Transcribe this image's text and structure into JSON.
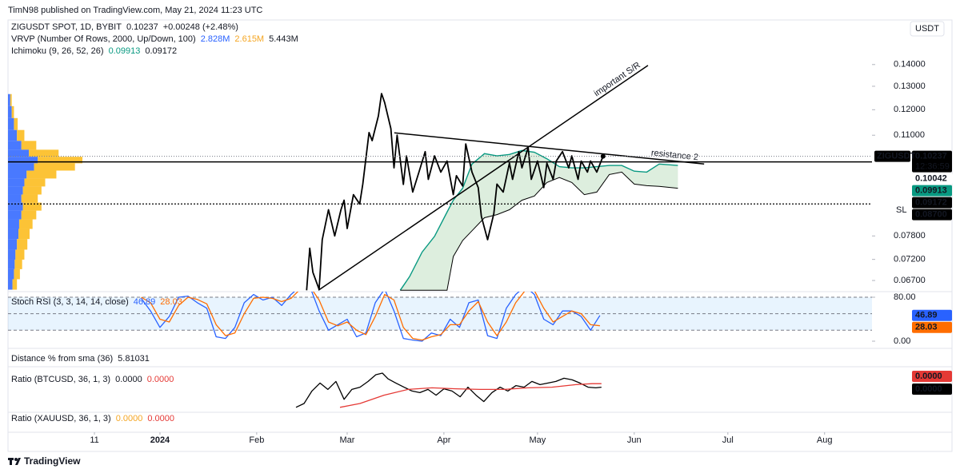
{
  "header": {
    "published": "TimN98 published on TradingView.com, May 21, 2024 11:23 UTC",
    "currency": "USDT"
  },
  "footer": {
    "brand": "TradingView"
  },
  "chart_data": [
    {
      "type": "line",
      "title": "ZIGUSDT SPOT, 1D, BYBIT",
      "change": "+0.00248 (+2.48%)",
      "log_scale": true,
      "xlim": [
        -48.7,
        228.2
      ],
      "xticks": [
        {
          "value": -21,
          "label": "11"
        },
        {
          "value": 0,
          "label": "2024"
        },
        {
          "value": 31,
          "label": "Feb"
        },
        {
          "value": 60,
          "label": "Mar"
        },
        {
          "value": 91,
          "label": "Apr"
        },
        {
          "value": 121,
          "label": "May"
        },
        {
          "value": 152,
          "label": "Jun"
        },
        {
          "value": 182,
          "label": "Jul"
        },
        {
          "value": 213,
          "label": "Aug"
        }
      ],
      "ylim": [
        0.0645,
        0.163
      ],
      "yticks": [
        {
          "value": 0.067,
          "label": "0.06700"
        },
        {
          "value": 0.072,
          "label": "0.07200"
        },
        {
          "value": 0.078,
          "label": "0.07800"
        },
        {
          "value": 0.11,
          "label": "0.11000"
        },
        {
          "value": 0.12,
          "label": "0.12000"
        },
        {
          "value": 0.13,
          "label": "0.13000"
        },
        {
          "value": 0.14,
          "label": "0.14000"
        }
      ],
      "x": [
        47,
        48,
        49,
        51,
        52,
        54,
        56,
        58,
        59,
        60,
        62,
        64,
        65,
        67,
        68,
        70,
        71,
        72,
        74,
        75,
        76,
        78,
        79,
        81,
        83,
        85,
        86,
        88,
        90,
        92,
        94,
        95,
        97,
        98,
        100,
        102,
        103,
        105,
        107,
        108,
        110,
        112,
        113,
        115,
        116,
        118,
        119,
        121,
        123,
        124,
        126,
        127,
        129,
        131,
        132,
        134,
        135,
        137,
        138,
        140,
        142
      ],
      "series": [
        {
          "name": "ZIGUSDT",
          "color": "#000000",
          "values": [
            0.0648,
            0.0748,
            0.0689,
            0.065,
            0.077,
            0.0853,
            0.078,
            0.0853,
            0.0881,
            0.08,
            0.0898,
            0.087,
            0.0931,
            0.111,
            0.108,
            0.1175,
            0.1268,
            0.123,
            0.1125,
            0.0984,
            0.11,
            0.093,
            0.1025,
            0.0906,
            0.097,
            0.104,
            0.0946,
            0.1025,
            0.097,
            0.1007,
            0.0898,
            0.0958,
            0.0925,
            0.1068,
            0.097,
            0.092,
            0.0834,
            0.077,
            0.0842,
            0.0931,
            0.0906,
            0.1,
            0.0946,
            0.104,
            0.0984,
            0.1055,
            0.0946,
            0.1007,
            0.092,
            0.1,
            0.0946,
            0.1007,
            0.104,
            0.0984,
            0.1025,
            0.0946,
            0.1007,
            0.097,
            0.1007,
            0.097,
            0.10237
          ]
        }
      ],
      "vrvp": {
        "name": "VRVP (Number Of Rows, 2000, Up/Down, 100)",
        "legend_values": [
          {
            "text": "2.828M",
            "color": "#2962ff"
          },
          {
            "text": "2.615M",
            "color": "#f5a623"
          },
          {
            "text": "5.443M",
            "color": "#131722"
          }
        ],
        "up_color": "#2962ff",
        "down_color": "#fbb813",
        "rows": [
          0.124,
          0.119,
          0.1143,
          0.1097,
          0.1061,
          0.1033,
          0.1011,
          0.0988,
          0.0962,
          0.0936,
          0.0911,
          0.0886,
          0.0862,
          0.0839,
          0.0812,
          0.0786,
          0.0758,
          0.0731,
          0.0708,
          0.0685,
          0.0661
        ],
        "up": [
          3,
          5,
          8,
          12,
          18,
          28,
          40,
          35,
          25,
          22,
          20,
          18,
          20,
          18,
          15,
          14,
          12,
          10,
          9,
          8,
          6
        ],
        "down": [
          2,
          3,
          5,
          10,
          20,
          40,
          60,
          55,
          40,
          28,
          25,
          22,
          25,
          20,
          18,
          15,
          14,
          12,
          10,
          8,
          6
        ]
      },
      "ichimoku": {
        "name": "Ichimoku (9, 26, 52, 26)",
        "cloud_color": "#43a047",
        "x": [
          77,
          80,
          84,
          88,
          92,
          94,
          97,
          100,
          104,
          108,
          112,
          116,
          120,
          124,
          128,
          132,
          136,
          140,
          144,
          148,
          152,
          156,
          160,
          166
        ],
        "span_a": {
          "color": "#089981",
          "values": [
            0.0648,
            0.0679,
            0.0738,
            0.0779,
            0.0846,
            0.0881,
            0.0918,
            0.0997,
            0.1033,
            0.1025,
            0.103,
            0.1044,
            0.1038,
            0.1015,
            0.0988,
            0.0984,
            0.0984,
            0.0988,
            0.0992,
            0.0992,
            0.0973,
            0.097,
            0.0997,
            0.0992
          ]
        },
        "span_b": {
          "color": "#000000",
          "values": [
            0.0648,
            0.0648,
            0.0648,
            0.0648,
            0.0648,
            0.0727,
            0.0768,
            0.0794,
            0.083,
            0.0839,
            0.0853,
            0.0881,
            0.0894,
            0.0936,
            0.0952,
            0.0936,
            0.0898,
            0.0906,
            0.0962,
            0.097,
            0.0931,
            0.0926,
            0.0924,
            0.0918
          ]
        }
      },
      "hlines": [
        {
          "value": 0.10042,
          "style": "solid"
        },
        {
          "value": 0.087,
          "style": "dotted",
          "label": "SL"
        }
      ],
      "drawings": [
        {
          "label": "important S/R",
          "x": [
            50.8,
            156.4
          ],
          "y": [
            0.0648,
            0.1396
          ]
        },
        {
          "label": "resistance 2",
          "x": [
            75.1,
            174.4
          ],
          "y": [
            0.1109,
            0.0997
          ]
        }
      ],
      "price_labels": [
        {
          "value": 0.10237,
          "label": "0.10237",
          "timer": "12:36:59",
          "color": "#000000",
          "text_color": "#ffffff"
        },
        {
          "value": 0.10042,
          "label": "0.10042",
          "color": "#ffffff",
          "text_color": "#000000"
        },
        {
          "value": 0.09913,
          "label": "0.09913",
          "color": "#089981",
          "text_color": "#ffffff"
        },
        {
          "value": 0.09172,
          "label": "0.09172",
          "color": "#000000",
          "text_color": "#ffffff"
        },
        {
          "value": 0.087,
          "label": "0.08700",
          "color": "#000000",
          "text_color": "#ffffff"
        }
      ]
    },
    {
      "type": "line",
      "title": "Stoch RSI (3, 3, 14, 14, close)",
      "ylim": [
        -11.6,
        90.2
      ],
      "yticks": [
        {
          "value": 0,
          "label": "0.00"
        },
        {
          "value": 80,
          "label": "80.00"
        }
      ],
      "band": [
        20,
        80
      ],
      "band_color": "#2196f3",
      "levels": [
        80,
        50,
        20
      ],
      "x": [
        -6,
        -3,
        0,
        3,
        6,
        9,
        12,
        15,
        18,
        21,
        24,
        27,
        30,
        33,
        36,
        39,
        42,
        45,
        48,
        51,
        54,
        57,
        60,
        63,
        66,
        69,
        72,
        75,
        78,
        81,
        84,
        87,
        90,
        93,
        96,
        99,
        102,
        105,
        108,
        111,
        114,
        117,
        120,
        123,
        126,
        129,
        132,
        135,
        138,
        141
      ],
      "series": [
        {
          "color": "#2962ff",
          "values": [
            78,
            55,
            25,
            45,
            80,
            82,
            70,
            60,
            8,
            5,
            25,
            70,
            85,
            75,
            80,
            65,
            85,
            100,
            100,
            55,
            20,
            30,
            40,
            8,
            15,
            70,
            95,
            55,
            5,
            2,
            0,
            15,
            10,
            40,
            25,
            70,
            75,
            10,
            5,
            60,
            85,
            100,
            85,
            40,
            30,
            55,
            55,
            45,
            20,
            46.89
          ]
        },
        {
          "color": "#ff6d00",
          "values": [
            80,
            70,
            40,
            35,
            65,
            80,
            76,
            68,
            30,
            10,
            15,
            50,
            78,
            80,
            78,
            72,
            78,
            95,
            100,
            75,
            35,
            28,
            35,
            20,
            12,
            45,
            85,
            75,
            25,
            5,
            2,
            8,
            12,
            30,
            30,
            55,
            72,
            35,
            10,
            35,
            70,
            92,
            92,
            60,
            35,
            45,
            55,
            50,
            30,
            28.03
          ]
        }
      ]
    },
    {
      "type": "line",
      "title": "Distance % from sma (36)",
      "legend_values": [
        {
          "text": "5.81031",
          "color": "#131722"
        }
      ]
    },
    {
      "type": "line",
      "title": "Ratio (BTCUSD, 36, 1, 3)",
      "ylim": [
        9e-07,
        2.3e-06
      ],
      "legend_values": [
        {
          "text": "0.0000",
          "color": "#131722"
        },
        {
          "text": "0.0000",
          "color": "#e53935"
        }
      ],
      "value_labels": [
        {
          "text": "0.0000",
          "color": "#e53935"
        },
        {
          "text": "0.0000",
          "color": "#000000"
        }
      ],
      "series": [
        {
          "color": "#000000",
          "x": [
            43.6,
            46.2,
            48.7,
            51.3,
            53.8,
            56.4,
            59,
            61.5,
            64.1,
            66.7,
            69.2,
            71.3,
            73.1,
            75.6,
            78.2,
            80.8,
            83.3,
            85.9,
            88.5,
            91,
            93.6,
            96.2,
            98.7,
            101.3,
            103.8,
            106.4,
            109,
            111.5,
            114.1,
            116.7,
            119.2,
            121.8,
            124.4,
            126.9,
            129.5,
            132.1,
            134.6,
            137.2,
            139.7,
            141.5
          ],
          "values": [
            1.03e-06,
            1.15e-06,
            1.54e-06,
            1.79e-06,
            1.59e-06,
            1.84e-06,
            1.28e-06,
            1.59e-06,
            1.66e-06,
            1.84e-06,
            2.05e-06,
            2.1e-06,
            1.92e-06,
            1.79e-06,
            1.66e-06,
            1.54e-06,
            1.49e-06,
            1.59e-06,
            1.41e-06,
            1.61e-06,
            1.54e-06,
            1.36e-06,
            1.66e-06,
            1.41e-06,
            1.21e-06,
            1.49e-06,
            1.66e-06,
            1.54e-06,
            1.71e-06,
            1.66e-06,
            1.84e-06,
            1.74e-06,
            1.79e-06,
            1.84e-06,
            1.94e-06,
            1.89e-06,
            1.79e-06,
            1.66e-06,
            1.64e-06,
            1.66e-06
          ]
        },
        {
          "color": "#e53935",
          "x": [
            57.7,
            64.1,
            71.8,
            79.5,
            87.2,
            94.9,
            102.6,
            110.3,
            117.9,
            125.6,
            133.3,
            138.5,
            141.5
          ],
          "values": [
            1.03e-06,
            1.15e-06,
            1.41e-06,
            1.59e-06,
            1.64e-06,
            1.61e-06,
            1.59e-06,
            1.59e-06,
            1.64e-06,
            1.66e-06,
            1.74e-06,
            1.77e-06,
            1.77e-06
          ]
        }
      ]
    },
    {
      "type": "line",
      "title": "Ratio (XAUUSD, 36, 1, 3)",
      "legend_values": [
        {
          "text": "0.0000",
          "color": "#f5a623"
        },
        {
          "text": "0.0000",
          "color": "#e53935"
        }
      ]
    }
  ]
}
